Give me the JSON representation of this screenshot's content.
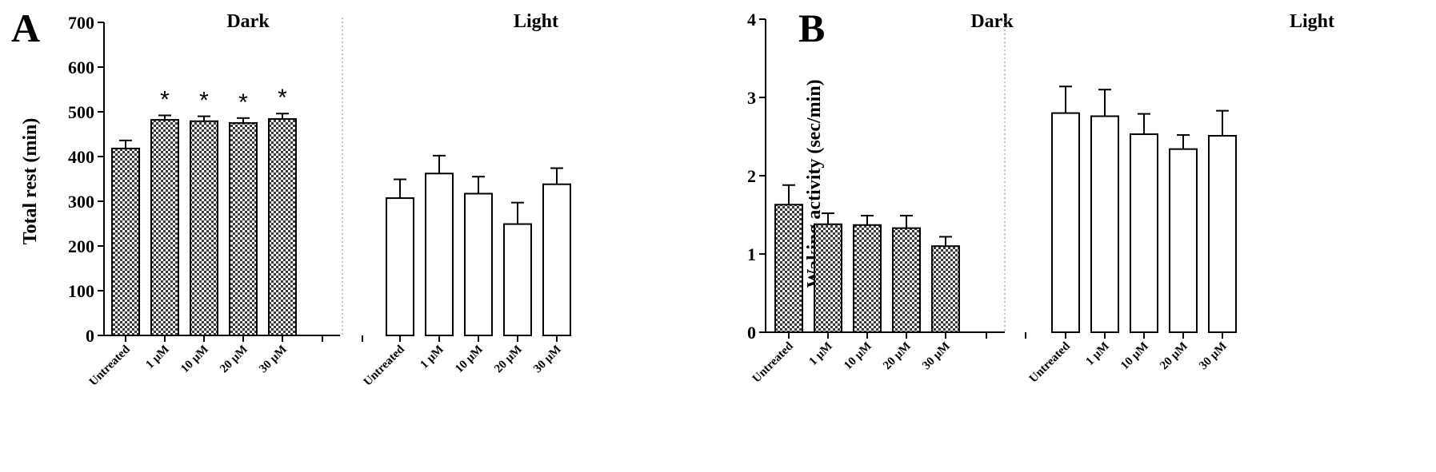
{
  "chart_data": [
    {
      "panel": "A",
      "type": "bar",
      "ylabel": "Total rest (min)",
      "ylim": [
        0,
        700
      ],
      "yticks": [
        0,
        100,
        200,
        300,
        400,
        500,
        600,
        700
      ],
      "groups": [
        {
          "name": "Dark",
          "fill": "checkered",
          "categories": [
            "Untreated",
            "1 µM",
            "10 µM",
            "20 µM",
            "30 µM"
          ],
          "values": [
            418,
            482,
            479,
            475,
            484
          ],
          "errors": [
            18,
            10,
            11,
            11,
            12
          ],
          "significance": [
            "",
            "*",
            "*",
            "*",
            "*"
          ]
        },
        {
          "name": "Light",
          "fill": "white",
          "categories": [
            "Untreated",
            "1 µM",
            "10 µM",
            "20 µM",
            "30 µM"
          ],
          "values": [
            307,
            362,
            317,
            249,
            338
          ],
          "errors": [
            42,
            40,
            38,
            48,
            36
          ],
          "significance": [
            "",
            "",
            "",
            "",
            ""
          ]
        }
      ]
    },
    {
      "panel": "B",
      "type": "bar",
      "ylabel": "Waking activity (sec/min)",
      "ylim": [
        0,
        4
      ],
      "yticks": [
        0,
        1,
        2,
        3,
        4
      ],
      "groups": [
        {
          "name": "Dark",
          "fill": "checkered",
          "categories": [
            "Untreated",
            "1 µM",
            "10 µM",
            "20 µM",
            "30 µM"
          ],
          "values": [
            1.63,
            1.38,
            1.37,
            1.33,
            1.1
          ],
          "errors": [
            0.25,
            0.14,
            0.12,
            0.16,
            0.12
          ],
          "significance": [
            "",
            "",
            "",
            "",
            ""
          ]
        },
        {
          "name": "Light",
          "fill": "white",
          "categories": [
            "Untreated",
            "1 µM",
            "10 µM",
            "20 µM",
            "30 µM"
          ],
          "values": [
            2.8,
            2.76,
            2.53,
            2.34,
            2.51
          ],
          "errors": [
            0.34,
            0.34,
            0.26,
            0.18,
            0.32
          ],
          "significance": [
            "",
            "",
            "",
            "",
            ""
          ]
        }
      ]
    }
  ]
}
